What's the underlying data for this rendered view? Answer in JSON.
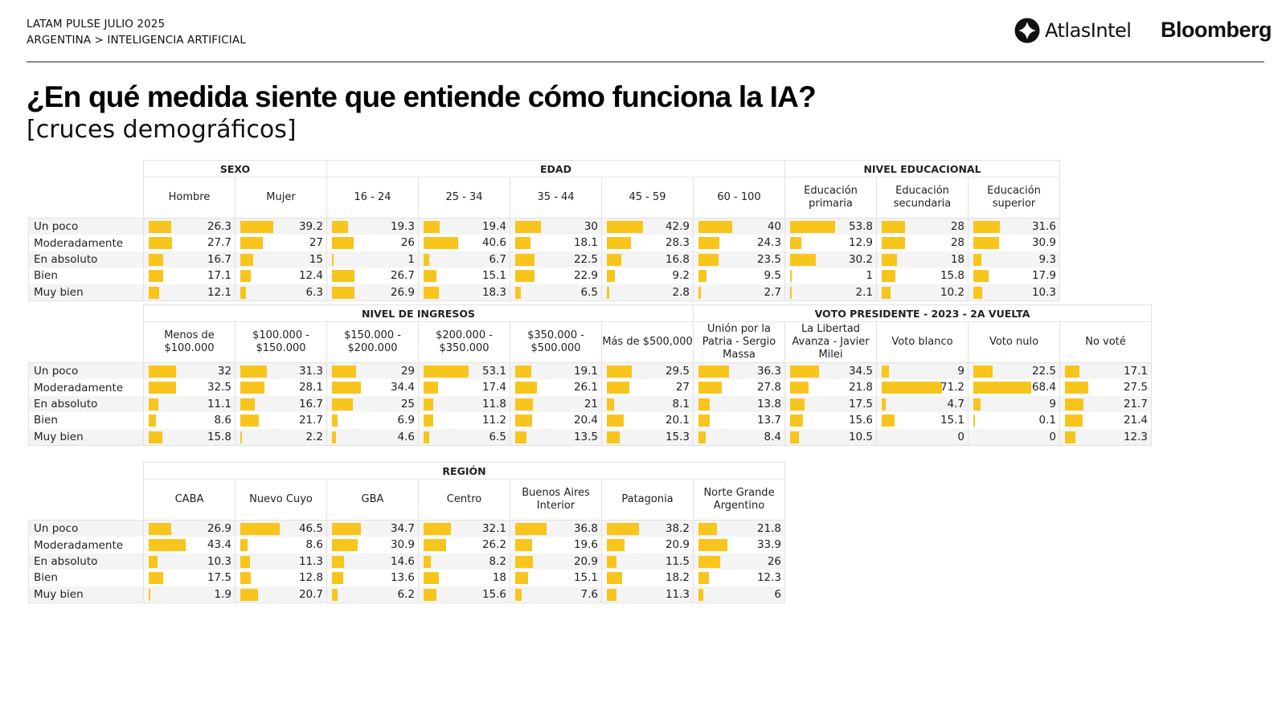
{
  "header": {
    "line1": "LATAM PULSE JULIO 2025",
    "line2": "ARGENTINA > INTELIGENCIA ARTIFICIAL",
    "logo_atlas": "AtlasIntel",
    "logo_bloomberg": "Bloomberg"
  },
  "title": "¿En qué medida siente que entiende cómo funciona la IA?",
  "subtitle": "[cruces demográficos]",
  "colors": {
    "bar": "#f8c51c",
    "row_alt": "#f4f4f4",
    "rule": "#8c8c8c"
  },
  "chart_data": {
    "type": "table",
    "title": "¿En qué medida siente que entiende cómo funciona la IA?",
    "subtitle": "[cruces demográficos]",
    "row_labels": [
      "Un poco",
      "Moderadamente",
      "En absoluto",
      "Bien",
      "Muy bien"
    ],
    "tables": [
      {
        "groups": [
          {
            "name": "SEXO",
            "columns": [
              {
                "label": "Hombre",
                "values": [
                  26.3,
                  27.7,
                  16.7,
                  17.1,
                  12.1
                ]
              },
              {
                "label": "Mujer",
                "values": [
                  39.2,
                  27,
                  15,
                  12.4,
                  6.3
                ]
              }
            ]
          },
          {
            "name": "EDAD",
            "columns": [
              {
                "label": "16 - 24",
                "values": [
                  19.3,
                  26,
                  1,
                  26.7,
                  26.9
                ]
              },
              {
                "label": "25 - 34",
                "values": [
                  19.4,
                  40.6,
                  6.7,
                  15.1,
                  18.3
                ]
              },
              {
                "label": "35 - 44",
                "values": [
                  30,
                  18.1,
                  22.5,
                  22.9,
                  6.5
                ]
              },
              {
                "label": "45 - 59",
                "values": [
                  42.9,
                  28.3,
                  16.8,
                  9.2,
                  2.8
                ]
              },
              {
                "label": "60 - 100",
                "values": [
                  40,
                  24.3,
                  23.5,
                  9.5,
                  2.7
                ]
              }
            ]
          },
          {
            "name": "NIVEL EDUCACIONAL",
            "columns": [
              {
                "label": "Educación primaria",
                "values": [
                  53.8,
                  12.9,
                  30.2,
                  1,
                  2.1
                ]
              },
              {
                "label": "Educación secundaria",
                "values": [
                  28,
                  28,
                  18,
                  15.8,
                  10.2
                ]
              },
              {
                "label": "Educación superior",
                "values": [
                  31.6,
                  30.9,
                  9.3,
                  17.9,
                  10.3
                ]
              }
            ]
          }
        ]
      },
      {
        "groups": [
          {
            "name": "NIVEL DE INGRESOS",
            "columns": [
              {
                "label": "Menos de $100.000",
                "values": [
                  32,
                  32.5,
                  11.1,
                  8.6,
                  15.8
                ]
              },
              {
                "label": "$100.000 - $150.000",
                "values": [
                  31.3,
                  28.1,
                  16.7,
                  21.7,
                  2.2
                ]
              },
              {
                "label": "$150.000 - $200.000",
                "values": [
                  29,
                  34.4,
                  25,
                  6.9,
                  4.6
                ]
              },
              {
                "label": "$200.000 - $350.000",
                "values": [
                  53.1,
                  17.4,
                  11.8,
                  11.2,
                  6.5
                ]
              },
              {
                "label": "$350.000 - $500.000",
                "values": [
                  19.1,
                  26.1,
                  21,
                  20.4,
                  13.5
                ]
              },
              {
                "label": "Más de $500,000",
                "values": [
                  29.5,
                  27,
                  8.1,
                  20.1,
                  15.3
                ]
              }
            ]
          },
          {
            "name": "VOTO PRESIDENTE - 2023 - 2A VUELTA",
            "columns": [
              {
                "label": "Unión por la Patria - Sergio Massa",
                "values": [
                  36.3,
                  27.8,
                  13.8,
                  13.7,
                  8.4
                ]
              },
              {
                "label": "La Libertad Avanza - Javier Milei",
                "values": [
                  34.5,
                  21.8,
                  17.5,
                  15.6,
                  10.5
                ]
              },
              {
                "label": "Voto blanco",
                "values": [
                  9,
                  71.2,
                  4.7,
                  15.1,
                  0
                ]
              },
              {
                "label": "Voto nulo",
                "values": [
                  22.5,
                  68.4,
                  9,
                  0.1,
                  0
                ]
              },
              {
                "label": "No voté",
                "values": [
                  17.1,
                  27.5,
                  21.7,
                  21.4,
                  12.3
                ]
              }
            ]
          }
        ]
      },
      {
        "groups": [
          {
            "name": "REGIÓN",
            "columns": [
              {
                "label": "CABA",
                "values": [
                  26.9,
                  43.4,
                  10.3,
                  17.5,
                  1.9
                ]
              },
              {
                "label": "Nuevo Cuyo",
                "values": [
                  46.5,
                  8.6,
                  11.3,
                  12.8,
                  20.7
                ]
              },
              {
                "label": "GBA",
                "values": [
                  34.7,
                  30.9,
                  14.6,
                  13.6,
                  6.2
                ]
              },
              {
                "label": "Centro",
                "values": [
                  32.1,
                  26.2,
                  8.2,
                  18,
                  15.6
                ]
              },
              {
                "label": "Buenos Aires Interior",
                "values": [
                  36.8,
                  19.6,
                  20.9,
                  15.1,
                  7.6
                ]
              },
              {
                "label": "Patagonia",
                "values": [
                  38.2,
                  20.9,
                  11.5,
                  18.2,
                  11.3
                ]
              },
              {
                "label": "Norte Grande Argentino",
                "values": [
                  21.8,
                  33.9,
                  26,
                  12.3,
                  6
                ]
              }
            ]
          }
        ]
      }
    ]
  }
}
